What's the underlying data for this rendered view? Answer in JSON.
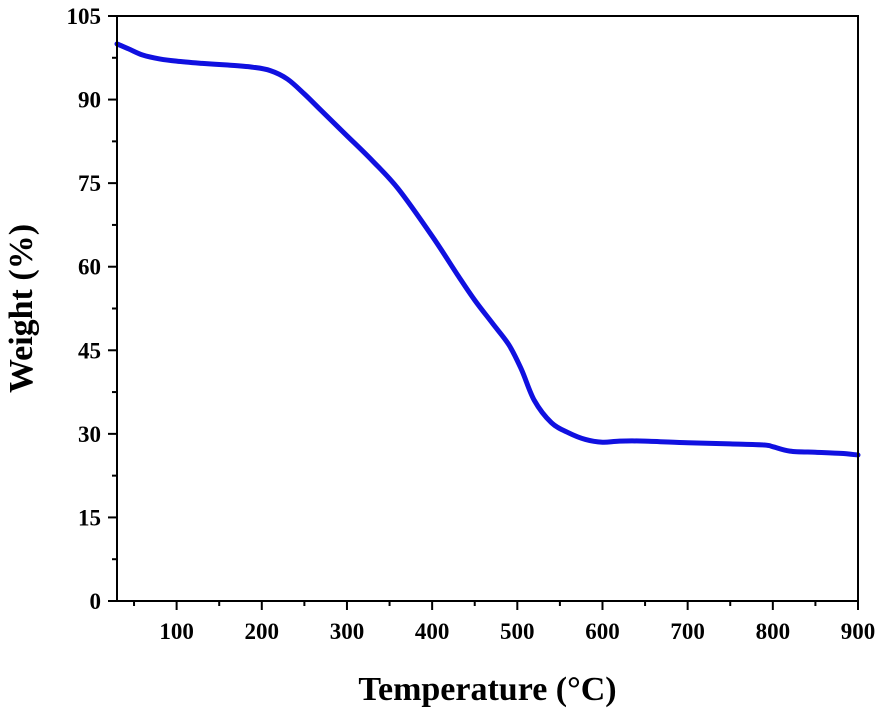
{
  "chart_data": {
    "type": "line",
    "title": "",
    "xlabel": "Temperature (°C)",
    "ylabel": "Weight (%)",
    "xlim": [
      30,
      900
    ],
    "ylim": [
      0,
      105
    ],
    "x_ticks": [
      100,
      200,
      300,
      400,
      500,
      600,
      700,
      800,
      900
    ],
    "y_ticks": [
      0,
      15,
      30,
      45,
      60,
      75,
      90,
      105
    ],
    "grid": false,
    "legend": "none",
    "series": [
      {
        "color": "#1010e0",
        "points": [
          [
            30,
            100.0
          ],
          [
            45,
            99.0
          ],
          [
            60,
            98.0
          ],
          [
            80,
            97.3
          ],
          [
            100,
            96.9
          ],
          [
            130,
            96.5
          ],
          [
            160,
            96.2
          ],
          [
            190,
            95.8
          ],
          [
            210,
            95.2
          ],
          [
            230,
            93.7
          ],
          [
            250,
            91.0
          ],
          [
            270,
            88.0
          ],
          [
            300,
            83.5
          ],
          [
            330,
            79.0
          ],
          [
            360,
            74.0
          ],
          [
            400,
            65.5
          ],
          [
            430,
            58.5
          ],
          [
            450,
            54.0
          ],
          [
            470,
            50.0
          ],
          [
            490,
            46.0
          ],
          [
            505,
            41.5
          ],
          [
            520,
            36.0
          ],
          [
            540,
            32.0
          ],
          [
            560,
            30.2
          ],
          [
            580,
            29.0
          ],
          [
            600,
            28.5
          ],
          [
            620,
            28.7
          ],
          [
            650,
            28.7
          ],
          [
            700,
            28.4
          ],
          [
            750,
            28.2
          ],
          [
            790,
            28.0
          ],
          [
            800,
            27.7
          ],
          [
            820,
            26.9
          ],
          [
            850,
            26.7
          ],
          [
            880,
            26.5
          ],
          [
            900,
            26.2
          ]
        ]
      }
    ]
  }
}
